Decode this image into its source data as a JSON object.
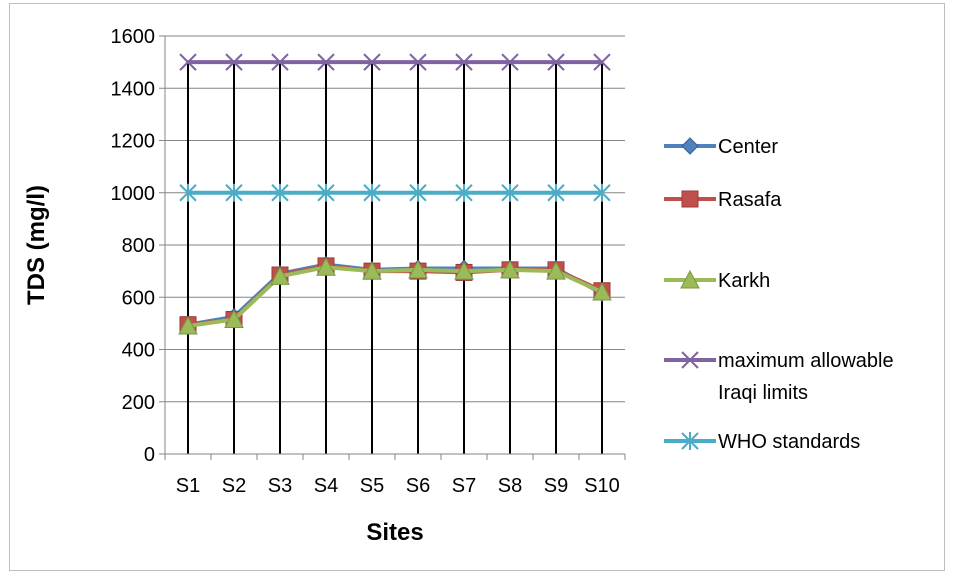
{
  "chart_data": {
    "type": "line",
    "xlabel": "Sites",
    "ylabel": "TDS (mg/l)",
    "categories": [
      "S1",
      "S2",
      "S3",
      "S4",
      "S5",
      "S6",
      "S7",
      "S8",
      "S9",
      "S10"
    ],
    "ylim": [
      0,
      1600
    ],
    "yticks": [
      0,
      200,
      400,
      600,
      800,
      1000,
      1200,
      1400,
      1600
    ],
    "grid": {
      "horizontal": true,
      "vertical_drop_lines": true
    },
    "legend_position": "right",
    "series": [
      {
        "name": "Center",
        "color": "#4f81bd",
        "marker": "diamond",
        "values": [
          495,
          525,
          690,
          725,
          705,
          710,
          710,
          710,
          710,
          615
        ]
      },
      {
        "name": "Rasafa",
        "color": "#c0504d",
        "marker": "square",
        "values": [
          495,
          515,
          685,
          720,
          700,
          700,
          695,
          705,
          705,
          625
        ]
      },
      {
        "name": "Karkh",
        "color": "#9bbb59",
        "marker": "triangle",
        "values": [
          490,
          515,
          680,
          715,
          700,
          705,
          700,
          705,
          700,
          620
        ]
      },
      {
        "name": "maximum allowable Iraqi limits",
        "legend_lines": [
          "maximum allowable",
          "Iraqi limits"
        ],
        "color": "#8064a2",
        "marker": "x",
        "values": [
          1500,
          1500,
          1500,
          1500,
          1500,
          1500,
          1500,
          1500,
          1500,
          1500
        ]
      },
      {
        "name": "WHO standards",
        "color": "#4bacc6",
        "marker": "star",
        "values": [
          1000,
          1000,
          1000,
          1000,
          1000,
          1000,
          1000,
          1000,
          1000,
          1000
        ]
      }
    ]
  }
}
